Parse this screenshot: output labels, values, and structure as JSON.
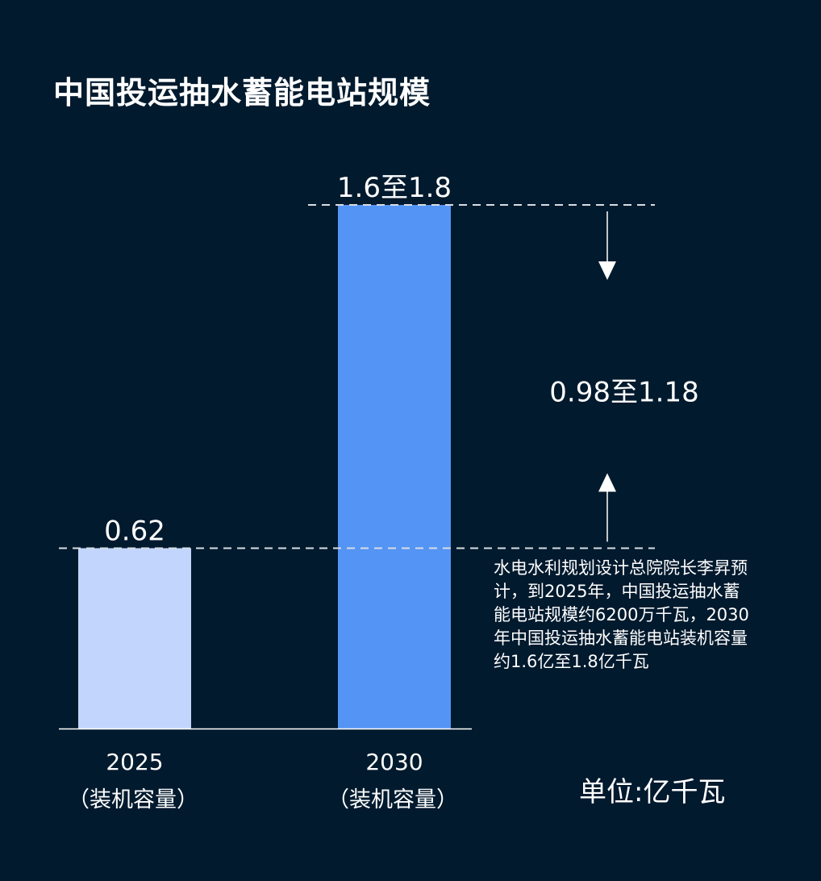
{
  "title": "中国投运抽水蓄能电站规模",
  "unit_label": "单位:亿千瓦",
  "note": "水电水利规划设计总院院长李昇预计，到2025年，中国投运抽水蓄能电站规模约6200万千瓦，2030年中国投运抽水蓄能电站装机容量约1.6亿至1.8亿千瓦",
  "colors": {
    "background": "#021a2e",
    "bar_2025": "#c2d6fd",
    "bar_2030": "#5494f4",
    "text": "#ffffff"
  },
  "chart_data": {
    "type": "bar",
    "title": "中国投运抽水蓄能电站规模",
    "ylabel": "",
    "unit": "亿千瓦",
    "ylim": [
      0,
      1.8
    ],
    "grid": false,
    "categories": [
      "2025",
      "2030"
    ],
    "category_sublabels": [
      "（装机容量）",
      "（装机容量）"
    ],
    "values": [
      0.62,
      1.8
    ],
    "value_labels": [
      "0.62",
      "1.6至1.8"
    ],
    "bar_colors": [
      "#c2d6fd",
      "#5494f4"
    ],
    "annotation": {
      "text": "0.98至1.18",
      "from_value": 0.62,
      "to_value": 1.8
    }
  }
}
